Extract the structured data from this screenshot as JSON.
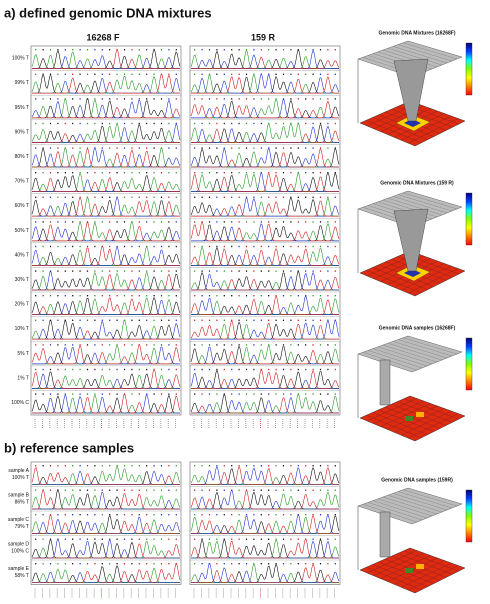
{
  "figure": {
    "part_a": {
      "title": "a) defined genomic DNA mixtures",
      "columns": [
        "16268 F",
        "159 R"
      ],
      "rows": [
        "100% T",
        "99% T",
        "95% T",
        "90% T",
        "80% T",
        "70% T",
        "60% T",
        "50% T",
        "40% T",
        "30% T",
        "20% T",
        "10% T",
        "5% T",
        "1% T",
        "100% C"
      ]
    },
    "part_b": {
      "title": "b) reference samples",
      "rows": [
        {
          "sample": "sample A",
          "value": "100% T"
        },
        {
          "sample": "sample B",
          "value": "86% T"
        },
        {
          "sample": "sample C",
          "value": "79% T"
        },
        {
          "sample": "sample D",
          "value": "100% C"
        },
        {
          "sample": "sample E",
          "value": "58% T"
        }
      ]
    },
    "plots": [
      "Genomic DNA Mixtures (16268F)",
      "Genomic DNA Mixtures (159 R)",
      "Genomic DNA samples (16268F)",
      "Genomic DNA samples (159R)"
    ]
  }
}
